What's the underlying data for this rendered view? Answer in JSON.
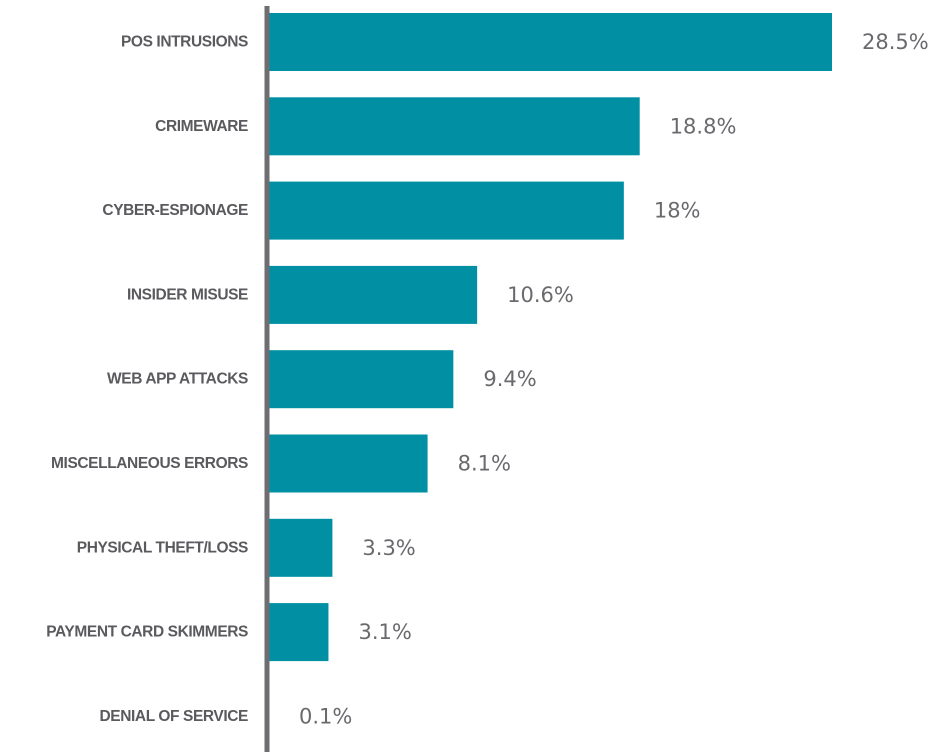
{
  "chart_data": {
    "type": "bar",
    "orientation": "horizontal",
    "categories": [
      "POS INTRUSIONS",
      "CRIMEWARE",
      "CYBER-ESPIONAGE",
      "INSIDER MISUSE",
      "WEB APP ATTACKS",
      "MISCELLANEOUS ERRORS",
      "PHYSICAL THEFT/LOSS",
      "PAYMENT CARD SKIMMERS",
      "DENIAL OF SERVICE"
    ],
    "values": [
      28.5,
      18.8,
      18,
      10.6,
      9.4,
      8.1,
      3.3,
      3.1,
      0.1
    ],
    "value_labels": [
      "28.5%",
      "18.8%",
      "18%",
      "10.6%",
      "9.4%",
      "8.1%",
      "3.3%",
      "3.1%",
      "0.1%"
    ],
    "title": "",
    "xlabel": "",
    "ylabel": "",
    "xlim": [
      0,
      28.5
    ],
    "grid": false,
    "legend": "none",
    "colors": {
      "bar": "#008fa3",
      "axis": "#6e6e72",
      "category_text": "#5a5a5e",
      "value_text": "#6a6a6e"
    }
  }
}
